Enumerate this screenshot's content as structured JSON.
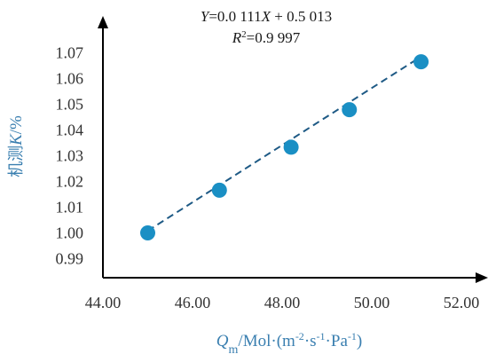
{
  "chart_data": {
    "type": "scatter",
    "x": [
      45.0,
      46.6,
      48.2,
      49.5,
      51.1
    ],
    "y": [
      1.0,
      1.0166,
      1.0333,
      1.0479,
      1.0665
    ],
    "xlim": [
      44.0,
      52.0
    ],
    "ylim": [
      0.98,
      1.08
    ],
    "xticks": [
      "44.00",
      "46.00",
      "48.00",
      "50.00",
      "52.00"
    ],
    "xtick_values": [
      44,
      46,
      48,
      50,
      52
    ],
    "yticks": [
      "0.99",
      "1.00",
      "1.01",
      "1.02",
      "1.03",
      "1.04",
      "1.05",
      "1.06",
      "1.07"
    ],
    "ytick_values": [
      0.99,
      1.0,
      1.01,
      1.02,
      1.03,
      1.04,
      1.05,
      1.06,
      1.07
    ],
    "equation": {
      "line1_y": "Y",
      "line1_mid": "=0.0 111",
      "line1_x": "X",
      "line1_end": " + 0.5 013",
      "line2_r": "R",
      "line2_sup": "2",
      "line2_end": "=0.9 997"
    },
    "fit": {
      "slope": 0.0111,
      "intercept": 0.5013
    },
    "xlabel": {
      "q": "Q",
      "sub": "m",
      "unit": "/Mol·(m",
      "e1": "-2",
      "m2": "·s",
      "e2": "-1",
      "m3": "·Pa",
      "e3": "-1",
      "end": ")"
    },
    "ylabel": {
      "cn": "机测",
      "k": "K",
      "pct": "/%"
    },
    "colors": {
      "marker": "#1a8fc4",
      "fit_line": "#1e5a85",
      "axis_label": "#3a7fb0",
      "axis": "#000000"
    }
  }
}
